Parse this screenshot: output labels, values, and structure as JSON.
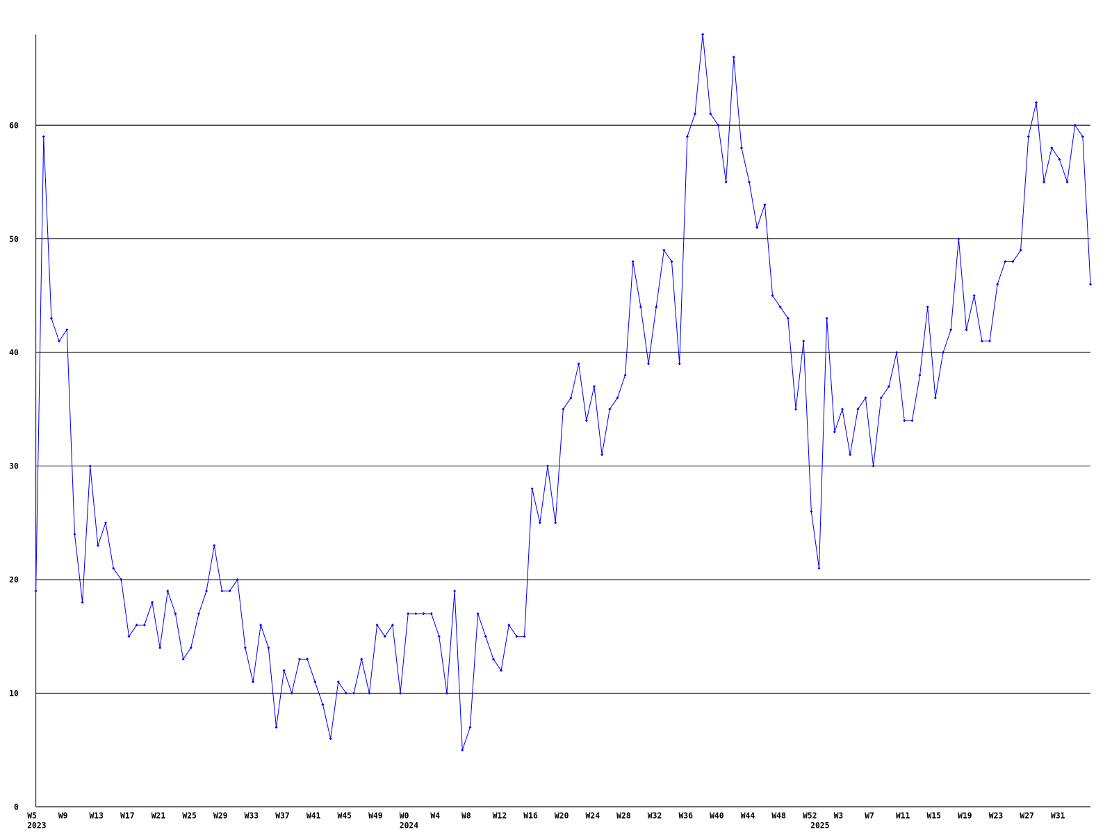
{
  "chart_data": {
    "type": "line",
    "categories": [
      "W5",
      null,
      null,
      null,
      "W9",
      null,
      null,
      null,
      "W13",
      null,
      null,
      null,
      "W17",
      null,
      null,
      null,
      "W21",
      null,
      null,
      null,
      "W25",
      null,
      null,
      null,
      "W29",
      null,
      null,
      null,
      "W33",
      null,
      null,
      null,
      "W37",
      null,
      null,
      null,
      "W41",
      null,
      null,
      null,
      "W45",
      null,
      null,
      null,
      "W49",
      null,
      null,
      null,
      "W0",
      null,
      null,
      null,
      "W4",
      null,
      null,
      null,
      "W8",
      null,
      null,
      null,
      "W12",
      null,
      null,
      null,
      "W16",
      null,
      null,
      null,
      "W20",
      null,
      null,
      null,
      "W24",
      null,
      null,
      null,
      "W28",
      null,
      null,
      null,
      "W32",
      null,
      null,
      null,
      "W36",
      null,
      null,
      null,
      "W40",
      null,
      null,
      null,
      "W44",
      null,
      null,
      null,
      "W48",
      null,
      null,
      null,
      "W52",
      null,
      null,
      null,
      "W3",
      null,
      null,
      null,
      "W7",
      null,
      null,
      null,
      "W11",
      null,
      null,
      null,
      "W15",
      null,
      null,
      null,
      "W19",
      null,
      null,
      null,
      "W23",
      null,
      null,
      null,
      "W27",
      null,
      null,
      null,
      "W31",
      null,
      null,
      null,
      null
    ],
    "year_labels": [
      "2023",
      null,
      null,
      null,
      null,
      null,
      null,
      null,
      null,
      null,
      null,
      null,
      null,
      null,
      null,
      null,
      null,
      null,
      null,
      null,
      null,
      null,
      null,
      null,
      null,
      null,
      null,
      null,
      null,
      null,
      null,
      null,
      null,
      null,
      null,
      null,
      null,
      null,
      null,
      null,
      null,
      null,
      null,
      null,
      null,
      null,
      null,
      null,
      "2024",
      null,
      null,
      null,
      null,
      null,
      null,
      null,
      null,
      null,
      null,
      null,
      null,
      null,
      null,
      null,
      null,
      null,
      null,
      null,
      null,
      null,
      null,
      null,
      null,
      null,
      null,
      null,
      null,
      null,
      null,
      null,
      null,
      null,
      null,
      null,
      null,
      null,
      null,
      null,
      null,
      null,
      null,
      null,
      null,
      null,
      null,
      null,
      null,
      null,
      null,
      null,
      null,
      "2025",
      null,
      null,
      null,
      null,
      null,
      null,
      null,
      null,
      null,
      null,
      null,
      null,
      null,
      null,
      null,
      null,
      null,
      null,
      null,
      null,
      null,
      null,
      null,
      null,
      null,
      null,
      null,
      null,
      null,
      null,
      null,
      null,
      null,
      null
    ],
    "series": [
      {
        "color": "#0000ff",
        "values": [
          19,
          59,
          43,
          41,
          42,
          24,
          18,
          30,
          23,
          25,
          21,
          20,
          15,
          16,
          16,
          18,
          14,
          19,
          17,
          13,
          14,
          17,
          19,
          23,
          19,
          19,
          20,
          14,
          11,
          16,
          14,
          7,
          12,
          10,
          13,
          13,
          11,
          9,
          6,
          11,
          10,
          10,
          13,
          10,
          16,
          15,
          16,
          10,
          17,
          17,
          17,
          17,
          15,
          10,
          19,
          5,
          7,
          17,
          15,
          13,
          12,
          16,
          15,
          15,
          28,
          25,
          30,
          25,
          35,
          36,
          39,
          34,
          37,
          31,
          35,
          36,
          38,
          48,
          44,
          39,
          44,
          49,
          48,
          39,
          59,
          61,
          68,
          61,
          60,
          55,
          66,
          58,
          55,
          51,
          53,
          45,
          44,
          43,
          35,
          41,
          26,
          21,
          43,
          33,
          35,
          31,
          35,
          36,
          30,
          36,
          37,
          40,
          34,
          34,
          38,
          44,
          36,
          40,
          42,
          50,
          42,
          45,
          41,
          41,
          46,
          48,
          48,
          49,
          59,
          62,
          55,
          58,
          57,
          55,
          60,
          59,
          46
        ]
      }
    ],
    "ylim": [
      0,
      68
    ],
    "yticks": [
      0,
      10,
      20,
      30,
      40,
      50,
      60
    ],
    "grid": true,
    "grid_color": "#000000"
  }
}
